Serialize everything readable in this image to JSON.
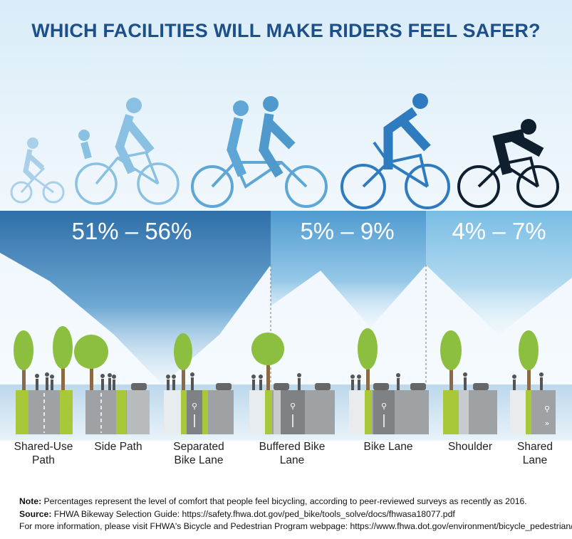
{
  "title": "WHICH FACILITIES WILL MAKE RIDERS FEEL SAFER?",
  "groups": [
    {
      "range": "51% – 56%"
    },
    {
      "range": "5% – 9%"
    },
    {
      "range": "4% – 7%"
    }
  ],
  "facilities": [
    {
      "line1": "Shared-Use",
      "line2": "Path"
    },
    {
      "line1": "Side Path",
      "line2": ""
    },
    {
      "line1": "Separated",
      "line2": "Bike Lane"
    },
    {
      "line1": "Buffered Bike",
      "line2": "Lane"
    },
    {
      "line1": "Bike Lane",
      "line2": ""
    },
    {
      "line1": "Shoulder",
      "line2": ""
    },
    {
      "line1": "Shared",
      "line2": "Lane"
    }
  ],
  "notes": {
    "note_label": "Note:",
    "note_text": " Percentages represent the level of comfort that people feel bicycling, according to peer-reviewed surveys as recently as 2016.",
    "source_label": "Source:",
    "source_text": " FHWA Bikeway Selection Guide: https://safety.fhwa.dot.gov/ped_bike/tools_solve/docs/fhwasa18077.pdf",
    "more_info": "For more information, please visit FHWA's Bicycle and Pedestrian Program webpage: https://www.fhwa.dot.gov/environment/bicycle_pedestrian/"
  },
  "colors": {
    "title": "#1d4f8a",
    "band_dark": "#2f6fa8",
    "band_mid": "#4f9bd0",
    "band_light": "#79bde4",
    "bike_green": "#a8c83a",
    "tree_green": "#8cbf3f"
  }
}
